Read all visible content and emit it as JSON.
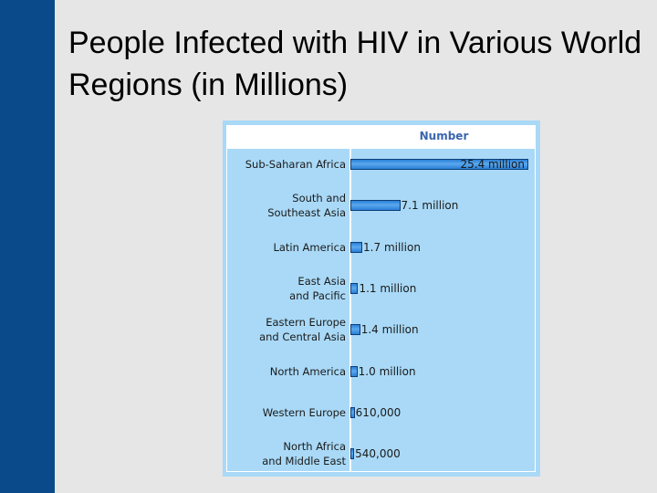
{
  "chart_data": {
    "type": "bar",
    "orientation": "horizontal",
    "title": "People Infected with HIV in Various World Regions (in Millions)",
    "column_header": "Number",
    "categories": [
      "Sub-Saharan Africa",
      "South and\nSoutheast Asia",
      "Latin America",
      "East Asia\nand Pacific",
      "Eastern Europe\nand Central Asia",
      "North America",
      "Western Europe",
      "North Africa\nand Middle East"
    ],
    "values": [
      25400000,
      7100000,
      1700000,
      1100000,
      1400000,
      1000000,
      610000,
      540000
    ],
    "value_labels": [
      "25.4 million",
      "7.1 million",
      "1.7 million",
      "1.1 million",
      "1.4 million",
      "1.0 million",
      "610,000",
      "540,000"
    ],
    "color": "#2b7fd6"
  }
}
